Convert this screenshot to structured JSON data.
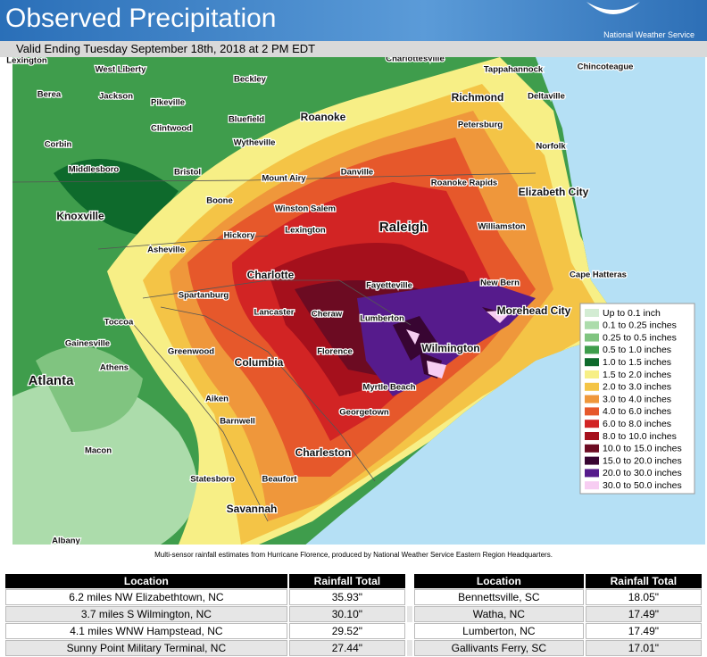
{
  "header": {
    "title": "Observed Precipitation",
    "agency": "National Weather Service"
  },
  "subtitle": "Valid Ending Tuesday September 18th, 2018 at 2 PM EDT",
  "map": {
    "labels": [
      "Lexington",
      "West Liberty",
      "Charlottesville",
      "Tappahannock",
      "Chincoteague",
      "Beckley",
      "Berea",
      "Jackson",
      "Pikeville",
      "Richmond",
      "Deltaville",
      "Roanoke",
      "Bluefield",
      "Petersburg",
      "Clintwood",
      "Norfolk",
      "Corbin",
      "Wytheville",
      "Middlesboro",
      "Bristol",
      "Danville",
      "Mount Airy",
      "Roanoke Rapids",
      "Elizabeth City",
      "Boone",
      "Winston Salem",
      "Knoxville",
      "Raleigh",
      "Williamston",
      "Lexington",
      "Hickory",
      "Asheville",
      "Charlotte",
      "Cape Hatteras",
      "Spartanburg",
      "Fayetteville",
      "New Bern",
      "Lancaster",
      "Cheraw",
      "Morehead City",
      "Lumberton",
      "Toccoa",
      "Gainesville",
      "Wilmington",
      "Greenwood",
      "Florence",
      "Athens",
      "Columbia",
      "Atlanta",
      "Myrtle Beach",
      "Aiken",
      "Georgetown",
      "Barnwell",
      "Charleston",
      "Macon",
      "Statesboro",
      "Beaufort",
      "Savannah",
      "Albany"
    ]
  },
  "legend": {
    "entries": [
      {
        "label": "Up to 0.1 inch",
        "color": "#d3ecd3"
      },
      {
        "label": "0.1 to 0.25 inches",
        "color": "#acdcab"
      },
      {
        "label": "0.25 to 0.5 inches",
        "color": "#80c480"
      },
      {
        "label": "0.5 to 1.0 inches",
        "color": "#3f9d4c"
      },
      {
        "label": "1.0 to 1.5 inches",
        "color": "#0e6a2c"
      },
      {
        "label": "1.5 to 2.0 inches",
        "color": "#f7ef86"
      },
      {
        "label": "2.0 to 3.0 inches",
        "color": "#f4c446"
      },
      {
        "label": "3.0 to 4.0 inches",
        "color": "#ef973b"
      },
      {
        "label": "4.0 to 6.0 inches",
        "color": "#e6582b"
      },
      {
        "label": "6.0 to 8.0 inches",
        "color": "#d22424"
      },
      {
        "label": "8.0 to 10.0 inches",
        "color": "#a5101c"
      },
      {
        "label": "10.0 to 15.0 inches",
        "color": "#6c0b22"
      },
      {
        "label": "15.0 to 20.0 inches",
        "color": "#380532"
      },
      {
        "label": "20.0 to 30.0 inches",
        "color": "#561b8c"
      },
      {
        "label": "30.0 to 50.0 inches",
        "color": "#f7cdf2"
      }
    ]
  },
  "caption": "Multi-sensor rainfall estimates from Hurricane Florence, produced by National Weather Service Eastern Region Headquarters.",
  "table": {
    "headers": [
      "Location",
      "Rainfall Total",
      "Location",
      "Rainfall Total"
    ],
    "rows": [
      [
        "6.2 miles NW Elizabethtown, NC",
        "35.93\"",
        "Bennettsville, SC",
        "18.05\""
      ],
      [
        "3.7 miles S Wilmington, NC",
        "30.10\"",
        "Watha, NC",
        "17.49\""
      ],
      [
        "4.1 miles WNW Hampstead, NC",
        "29.52\"",
        "Lumberton, NC",
        "17.49\""
      ],
      [
        "Sunny Point Military Terminal, NC",
        "27.44\"",
        "Gallivants Ferry, SC",
        "17.01\""
      ]
    ]
  }
}
